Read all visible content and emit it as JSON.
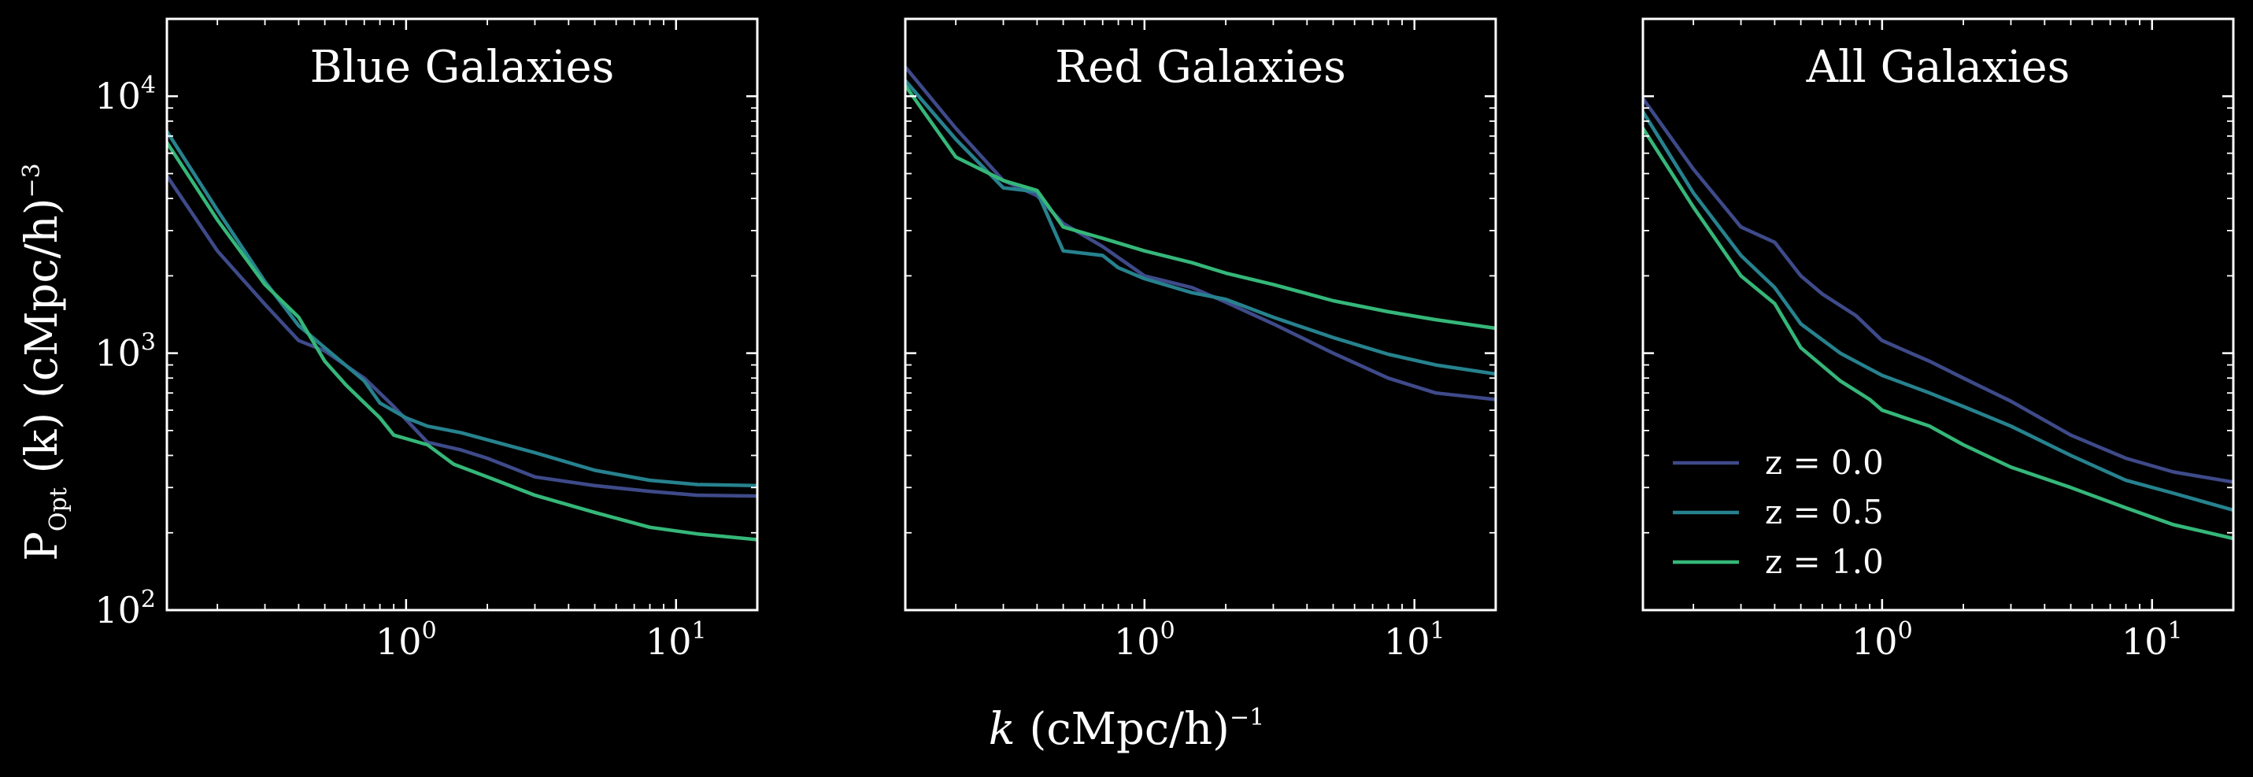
{
  "chart_data": [
    {
      "type": "line",
      "title": "Blue Galaxies",
      "x_scale": "log",
      "y_scale": "log",
      "xlim": [
        0.13,
        20
      ],
      "ylim": [
        100,
        20000
      ],
      "grid": false,
      "series": [
        {
          "name": "z = 0.0",
          "color": "#3e4a89",
          "points": [
            [
              0.13,
              4900
            ],
            [
              0.2,
              2500
            ],
            [
              0.3,
              1550
            ],
            [
              0.4,
              1120
            ],
            [
              0.5,
              1020
            ],
            [
              0.7,
              800
            ],
            [
              0.9,
              620
            ],
            [
              1.2,
              450
            ],
            [
              1.6,
              420
            ],
            [
              2,
              390
            ],
            [
              3,
              330
            ],
            [
              5,
              305
            ],
            [
              8,
              290
            ],
            [
              12,
              280
            ],
            [
              20,
              278
            ]
          ]
        },
        {
          "name": "z = 0.5",
          "color": "#26828e",
          "points": [
            [
              0.13,
              7300
            ],
            [
              0.2,
              3600
            ],
            [
              0.3,
              1900
            ],
            [
              0.4,
              1280
            ],
            [
              0.5,
              1050
            ],
            [
              0.7,
              780
            ],
            [
              0.8,
              640
            ],
            [
              1.0,
              560
            ],
            [
              1.2,
              520
            ],
            [
              1.6,
              490
            ],
            [
              2,
              460
            ],
            [
              3,
              410
            ],
            [
              5,
              350
            ],
            [
              8,
              320
            ],
            [
              12,
              308
            ],
            [
              20,
              305
            ]
          ]
        },
        {
          "name": "z = 1.0",
          "color": "#35b779",
          "points": [
            [
              0.13,
              6600
            ],
            [
              0.2,
              3300
            ],
            [
              0.3,
              1850
            ],
            [
              0.4,
              1380
            ],
            [
              0.5,
              930
            ],
            [
              0.6,
              750
            ],
            [
              0.8,
              560
            ],
            [
              0.9,
              480
            ],
            [
              1.2,
              440
            ],
            [
              1.5,
              370
            ],
            [
              2,
              330
            ],
            [
              3,
              280
            ],
            [
              5,
              240
            ],
            [
              8,
              210
            ],
            [
              12,
              198
            ],
            [
              20,
              188
            ]
          ]
        }
      ]
    },
    {
      "type": "line",
      "title": "Red Galaxies",
      "x_scale": "log",
      "y_scale": "log",
      "xlim": [
        0.13,
        20
      ],
      "ylim": [
        100,
        20000
      ],
      "grid": false,
      "series": [
        {
          "name": "z = 0.0",
          "color": "#3e4a89",
          "points": [
            [
              0.13,
              13000
            ],
            [
              0.2,
              7500
            ],
            [
              0.3,
              4700
            ],
            [
              0.4,
              4100
            ],
            [
              0.5,
              3200
            ],
            [
              0.7,
              2600
            ],
            [
              1.0,
              2000
            ],
            [
              1.5,
              1800
            ],
            [
              2,
              1580
            ],
            [
              3,
              1300
            ],
            [
              5,
              1000
            ],
            [
              8,
              800
            ],
            [
              12,
              700
            ],
            [
              20,
              660
            ]
          ]
        },
        {
          "name": "z = 0.5",
          "color": "#26828e",
          "points": [
            [
              0.13,
              11500
            ],
            [
              0.2,
              6800
            ],
            [
              0.3,
              4400
            ],
            [
              0.4,
              4250
            ],
            [
              0.5,
              2500
            ],
            [
              0.7,
              2400
            ],
            [
              0.8,
              2150
            ],
            [
              1.0,
              1950
            ],
            [
              1.5,
              1720
            ],
            [
              2,
              1620
            ],
            [
              3,
              1380
            ],
            [
              5,
              1150
            ],
            [
              8,
              990
            ],
            [
              12,
              900
            ],
            [
              20,
              830
            ]
          ]
        },
        {
          "name": "z = 1.0",
          "color": "#35b779",
          "points": [
            [
              0.13,
              11000
            ],
            [
              0.2,
              5800
            ],
            [
              0.3,
              4700
            ],
            [
              0.4,
              4300
            ],
            [
              0.5,
              3100
            ],
            [
              0.7,
              2800
            ],
            [
              1.0,
              2500
            ],
            [
              1.5,
              2250
            ],
            [
              2,
              2050
            ],
            [
              3,
              1850
            ],
            [
              5,
              1600
            ],
            [
              8,
              1450
            ],
            [
              12,
              1350
            ],
            [
              20,
              1250
            ]
          ]
        }
      ]
    },
    {
      "type": "line",
      "title": "All Galaxies",
      "x_scale": "log",
      "y_scale": "log",
      "xlim": [
        0.13,
        20
      ],
      "ylim": [
        100,
        20000
      ],
      "grid": false,
      "legend": {
        "position": "lower-left",
        "entries": [
          "z = 0.0",
          "z = 0.5",
          "z = 1.0"
        ]
      },
      "series": [
        {
          "name": "z = 0.0",
          "color": "#3e4a89",
          "points": [
            [
              0.13,
              9800
            ],
            [
              0.2,
              5200
            ],
            [
              0.3,
              3100
            ],
            [
              0.4,
              2700
            ],
            [
              0.5,
              2000
            ],
            [
              0.6,
              1700
            ],
            [
              0.8,
              1400
            ],
            [
              1.0,
              1120
            ],
            [
              1.5,
              930
            ],
            [
              2,
              800
            ],
            [
              3,
              650
            ],
            [
              5,
              480
            ],
            [
              8,
              390
            ],
            [
              12,
              345
            ],
            [
              20,
              315
            ]
          ]
        },
        {
          "name": "z = 0.5",
          "color": "#26828e",
          "points": [
            [
              0.13,
              8700
            ],
            [
              0.2,
              4200
            ],
            [
              0.3,
              2400
            ],
            [
              0.4,
              1800
            ],
            [
              0.5,
              1300
            ],
            [
              0.7,
              1000
            ],
            [
              1.0,
              820
            ],
            [
              1.5,
              700
            ],
            [
              2,
              620
            ],
            [
              3,
              520
            ],
            [
              5,
              400
            ],
            [
              8,
              320
            ],
            [
              12,
              285
            ],
            [
              20,
              245
            ]
          ]
        },
        {
          "name": "z = 1.0",
          "color": "#35b779",
          "points": [
            [
              0.13,
              7500
            ],
            [
              0.2,
              3700
            ],
            [
              0.3,
              2000
            ],
            [
              0.4,
              1560
            ],
            [
              0.5,
              1050
            ],
            [
              0.7,
              780
            ],
            [
              0.9,
              660
            ],
            [
              1.0,
              600
            ],
            [
              1.5,
              520
            ],
            [
              2,
              440
            ],
            [
              3,
              360
            ],
            [
              5,
              300
            ],
            [
              8,
              250
            ],
            [
              12,
              215
            ],
            [
              20,
              190
            ]
          ]
        }
      ]
    }
  ],
  "axes": {
    "y_title_main": "P",
    "y_title_sub": "Opt",
    "y_title_rest": " (k) (cMpc/h)",
    "y_title_sup": "−3",
    "x_title_var": "k",
    "x_title_rest": " (cMpc/h)",
    "x_title_sup": "−1",
    "x_ticks": [
      {
        "base": "10",
        "exp": "0",
        "value": 1
      },
      {
        "base": "10",
        "exp": "1",
        "value": 10
      }
    ],
    "y_ticks": [
      {
        "base": "10",
        "exp": "2",
        "value": 100
      },
      {
        "base": "10",
        "exp": "3",
        "value": 1000
      },
      {
        "base": "10",
        "exp": "4",
        "value": 10000
      }
    ]
  }
}
